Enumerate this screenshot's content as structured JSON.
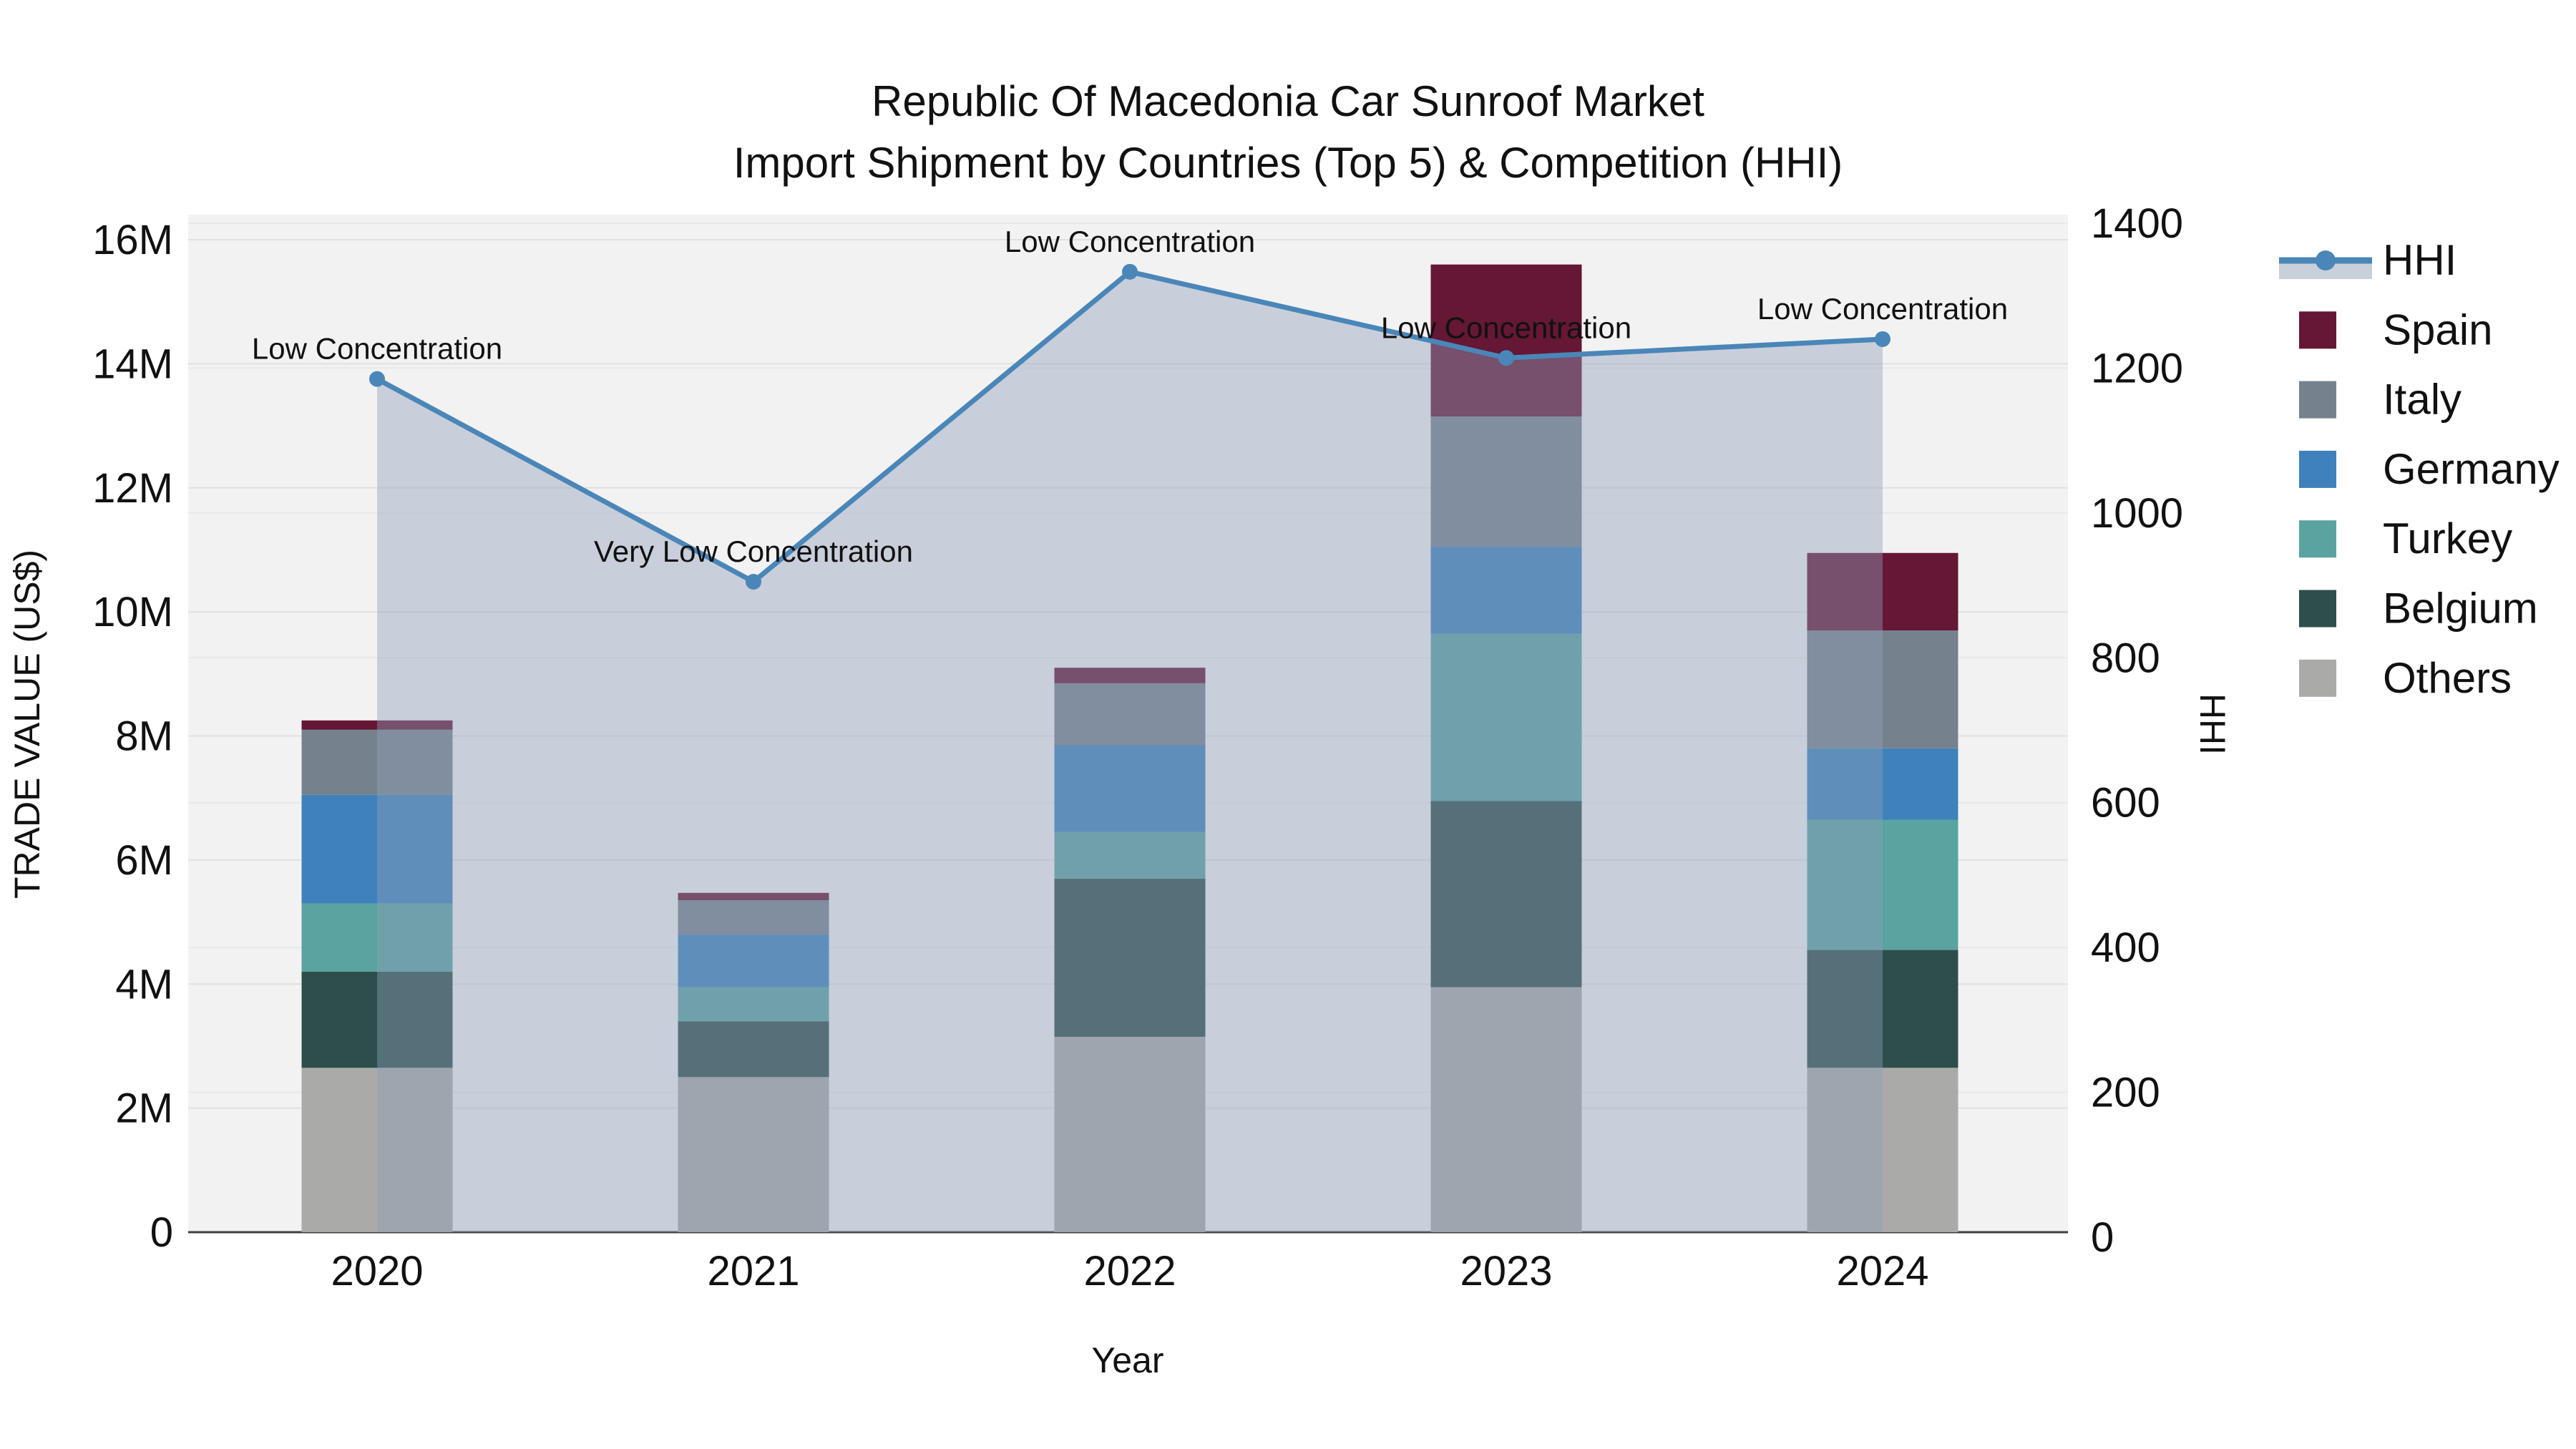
{
  "title": {
    "line1": "Republic Of Macedonia Car Sunroof Market",
    "line2": "Import Shipment by Countries (Top 5) & Competition (HHI)"
  },
  "axes": {
    "x": {
      "title": "Year",
      "categories": [
        "2020",
        "2021",
        "2022",
        "2023",
        "2024"
      ]
    },
    "y_left": {
      "title": "TRADE VALUE (US$)",
      "tick_labels": [
        "0",
        "2M",
        "4M",
        "6M",
        "8M",
        "10M",
        "12M",
        "14M",
        "16M"
      ],
      "tick_values": [
        0,
        2,
        4,
        6,
        8,
        10,
        12,
        14,
        16
      ],
      "range": [
        0,
        16.4
      ]
    },
    "y_right": {
      "title": "HHI",
      "tick_labels": [
        "0",
        "200",
        "400",
        "600",
        "800",
        "1000",
        "1200",
        "1400"
      ],
      "tick_values": [
        0,
        200,
        400,
        600,
        800,
        1000,
        1200,
        1400
      ],
      "range": [
        0,
        1405
      ]
    }
  },
  "chart_data": {
    "type": "bar+line",
    "title": "Republic Of Macedonia Car Sunroof Market — Import Shipment by Countries (Top 5) & Competition (HHI)",
    "xlabel": "Year",
    "ylabel_left": "TRADE VALUE (US$)",
    "ylabel_right": "HHI",
    "categories": [
      "2020",
      "2021",
      "2022",
      "2023",
      "2024"
    ],
    "bar_units": "millions US$",
    "series": [
      {
        "name": "Others",
        "color": "#AAAAA8",
        "values": [
          2.65,
          2.5,
          3.15,
          3.95,
          2.65
        ]
      },
      {
        "name": "Belgium",
        "color": "#2E4E4B",
        "values": [
          1.55,
          0.9,
          2.55,
          3.0,
          1.9
        ]
      },
      {
        "name": "Turkey",
        "color": "#5AA3A0",
        "values": [
          1.1,
          0.55,
          0.75,
          2.7,
          2.1
        ]
      },
      {
        "name": "Germany",
        "color": "#3F81BA",
        "values": [
          1.75,
          0.85,
          1.4,
          1.4,
          1.15
        ]
      },
      {
        "name": "Italy",
        "color": "#75828E",
        "values": [
          1.05,
          0.55,
          1.0,
          2.1,
          1.9
        ]
      },
      {
        "name": "Spain",
        "color": "#651735",
        "values": [
          0.15,
          0.12,
          0.25,
          2.45,
          1.25
        ]
      }
    ],
    "bar_totals": [
      8.25,
      5.47,
      9.1,
      15.6,
      10.95
    ],
    "hhi": {
      "name": "HHI",
      "color": "#4A86B8",
      "area_fill": "#8FA0BA",
      "area_opacity": 0.42,
      "values": [
        1185,
        905,
        1333,
        1214,
        1240
      ],
      "point_labels": [
        "Low Concentration",
        "Very Low Concentration",
        "Low Concentration",
        "Low Concentration",
        "Low Concentration"
      ]
    },
    "legend_position": "right",
    "grid": true,
    "plot_bg": "#F2F2F2"
  },
  "legend": {
    "items": [
      {
        "label": "HHI",
        "type": "line",
        "color": "#4A86B8"
      },
      {
        "label": "Spain",
        "type": "swatch",
        "color": "#651735"
      },
      {
        "label": "Italy",
        "type": "swatch",
        "color": "#75828E"
      },
      {
        "label": "Germany",
        "type": "swatch",
        "color": "#3F81BA"
      },
      {
        "label": "Turkey",
        "type": "swatch",
        "color": "#5AA3A0"
      },
      {
        "label": "Belgium",
        "type": "swatch",
        "color": "#2E4E4B"
      },
      {
        "label": "Others",
        "type": "swatch",
        "color": "#AAAAA8"
      }
    ]
  }
}
